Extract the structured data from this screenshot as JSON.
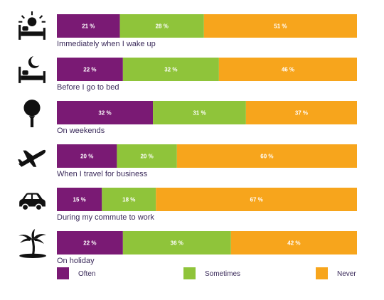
{
  "chart_data": {
    "type": "bar",
    "orientation": "horizontal",
    "stacked": true,
    "percent": true,
    "categories": [
      "Immediately when I wake up",
      "Before I go to bed",
      "On weekends",
      "When I travel for business",
      "During my commute to work",
      "On holiday"
    ],
    "icons": [
      "sunrise-bed-icon",
      "moon-bed-icon",
      "golf-ball-tee-icon",
      "airplane-icon",
      "car-icon",
      "palm-tree-island-icon"
    ],
    "series": [
      {
        "name": "Often",
        "color": "#7a1a74",
        "values": [
          21,
          22,
          32,
          20,
          15,
          22
        ]
      },
      {
        "name": "Sometimes",
        "color": "#8fc43a",
        "values": [
          28,
          32,
          31,
          20,
          18,
          36
        ]
      },
      {
        "name": "Never",
        "color": "#f7a51c",
        "values": [
          51,
          46,
          37,
          60,
          67,
          42
        ]
      }
    ],
    "value_suffix": " %",
    "xlim": [
      0,
      100
    ],
    "legend_position": "bottom"
  }
}
